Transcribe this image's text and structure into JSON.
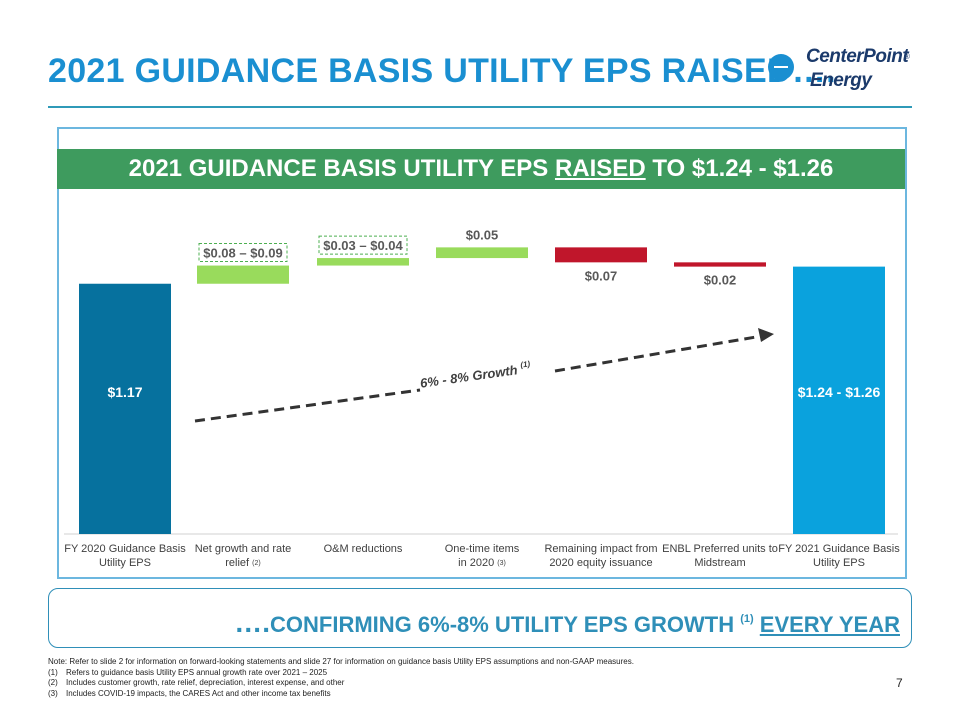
{
  "header": {
    "title": "2021 GUIDANCE BASIS UTILITY EPS RAISED….",
    "logo_line1": "CenterPoint",
    "logo_line2": "Energy",
    "logo_reg": "®"
  },
  "banner": {
    "prefix": "2021 GUIDANCE BASIS UTILITY EPS ",
    "emph": "RAISED",
    "suffix": " TO $1.24 - $1.26"
  },
  "chart_data": {
    "type": "bar",
    "subtype": "waterfall",
    "categories": [
      [
        "FY 2020 Guidance Basis",
        "Utility EPS"
      ],
      [
        "Net growth and rate",
        "relief (2)"
      ],
      [
        "O&M reductions"
      ],
      [
        "One-time items",
        "in 2020 (3)"
      ],
      [
        "Remaining impact from",
        "2020 equity issuance"
      ],
      [
        "ENBL Preferred units to",
        "Midstream"
      ],
      [
        "FY 2021 Guidance Basis",
        "Utility EPS"
      ]
    ],
    "bars": [
      {
        "kind": "total",
        "start": 0,
        "end": 1.17,
        "label": "$1.17",
        "color": "#06719e"
      },
      {
        "kind": "increase",
        "start": 1.17,
        "end": 1.255,
        "label": "$0.08 – $0.09",
        "boxed": true,
        "color": "#99db5c"
      },
      {
        "kind": "increase",
        "start": 1.255,
        "end": 1.29,
        "label": "$0.03 – $0.04",
        "boxed": true,
        "color": "#99db5c"
      },
      {
        "kind": "increase",
        "start": 1.29,
        "end": 1.34,
        "label": "$0.05",
        "boxed": false,
        "color": "#99db5c"
      },
      {
        "kind": "decrease",
        "start": 1.34,
        "end": 1.27,
        "label": "$0.07",
        "boxed": false,
        "color": "#c0162b"
      },
      {
        "kind": "decrease",
        "start": 1.27,
        "end": 1.25,
        "label": "$0.02",
        "boxed": false,
        "color": "#c0162b"
      },
      {
        "kind": "total",
        "start": 0,
        "end": 1.25,
        "label": "$1.24 - $1.26",
        "color": "#0aa2dd"
      }
    ],
    "trend_label": "6% - 8% Growth",
    "trend_sup": "(1)"
  },
  "bottom": {
    "dots": "….",
    "text": "CONFIRMING 6%-8% UTILITY EPS GROWTH ",
    "sup": "(1)",
    "emph": "EVERY YEAR"
  },
  "notes": {
    "intro": "Note: Refer to slide 2 for information on forward-looking statements and slide 27 for information on guidance basis Utility EPS assumptions and non-GAAP measures.",
    "items": [
      {
        "num": "(1)",
        "text": "Refers to guidance basis Utility EPS annual growth rate over 2021 – 2025"
      },
      {
        "num": "(2)",
        "text": "Includes customer growth, rate relief, depreciation, interest expense, and other"
      },
      {
        "num": "(3)",
        "text": "Includes COVID-19 impacts, the CARES Act and other income tax benefits"
      }
    ]
  },
  "page_number": "7"
}
